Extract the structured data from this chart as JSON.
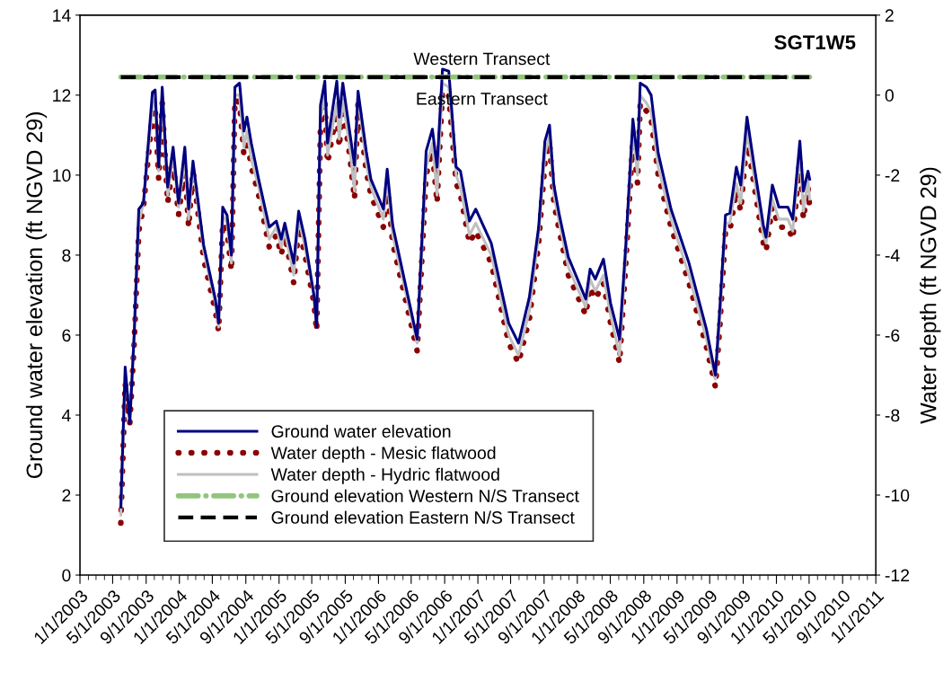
{
  "chart_data": {
    "type": "line",
    "title": "SGT1W5",
    "ylabel": "Ground water elevation (ft NGVD 29)",
    "y2label": "Water depth (ft NGVD 29)",
    "annotations": [
      {
        "text": "Western Transect",
        "x": "2007-01-15",
        "y": 12.45
      },
      {
        "text": "Eastern Transect",
        "x": "2007-01-15",
        "y": 12.45
      }
    ],
    "x": [
      "2003-05-31",
      "2003-06-16",
      "2003-07-03",
      "2003-07-19",
      "2003-08-05",
      "2003-08-22",
      "2003-09-24",
      "2003-10-04",
      "2003-10-17",
      "2003-10-30",
      "2003-11-19",
      "2003-12-09",
      "2003-12-29",
      "2004-01-21",
      "2004-02-04",
      "2004-02-20",
      "2004-03-30",
      "2004-05-12",
      "2004-05-24",
      "2004-06-08",
      "2004-06-24",
      "2004-07-10",
      "2004-07-23",
      "2004-08-09",
      "2004-08-25",
      "2004-09-05",
      "2004-09-21",
      "2004-10-18",
      "2004-11-26",
      "2004-12-22",
      "2005-01-09",
      "2005-01-22",
      "2005-02-24",
      "2005-03-14",
      "2005-04-06",
      "2005-05-09",
      "2005-05-19",
      "2005-06-02",
      "2005-06-18",
      "2005-06-28",
      "2005-08-01",
      "2005-08-10",
      "2005-08-23",
      "2005-09-19",
      "2005-10-05",
      "2005-10-18",
      "2005-11-17",
      "2005-12-04",
      "2006-01-19",
      "2006-02-02",
      "2006-02-22",
      "2006-05-23",
      "2006-06-25",
      "2006-07-18",
      "2006-08-04",
      "2006-08-24",
      "2006-09-16",
      "2006-10-13",
      "2006-10-29",
      "2006-12-01",
      "2006-12-24",
      "2007-02-19",
      "2007-04-24",
      "2007-05-30",
      "2007-07-09",
      "2007-08-12",
      "2007-09-04",
      "2007-09-21",
      "2007-10-07",
      "2007-10-27",
      "2007-11-29",
      "2008-02-01",
      "2008-02-17",
      "2008-03-07",
      "2008-04-06",
      "2008-05-02",
      "2008-06-04",
      "2008-06-27",
      "2008-07-23",
      "2008-08-09",
      "2008-08-19",
      "2008-09-11",
      "2008-09-28",
      "2008-10-24",
      "2008-12-10",
      "2009-02-14",
      "2009-04-19",
      "2009-05-22",
      "2009-06-08",
      "2009-06-28",
      "2009-07-14",
      "2009-08-07",
      "2009-08-23",
      "2009-09-15",
      "2009-10-12",
      "2009-11-14",
      "2009-11-24",
      "2009-12-17",
      "2010-01-10",
      "2010-02-12",
      "2010-03-02",
      "2010-03-28",
      "2010-04-10",
      "2010-04-27",
      "2010-05-03"
    ],
    "series": [
      {
        "name": "Ground water elevation",
        "color": "#000080",
        "line_style": "solid",
        "values": [
          1.7,
          5.2,
          3.8,
          6.0,
          9.15,
          9.3,
          12.07,
          12.13,
          10.2,
          12.2,
          9.7,
          10.7,
          9.3,
          10.7,
          9.15,
          10.35,
          8.25,
          6.9,
          6.3,
          9.2,
          9.0,
          8.0,
          12.2,
          12.3,
          11.1,
          11.45,
          10.8,
          9.9,
          8.7,
          8.85,
          8.4,
          8.8,
          7.8,
          9.1,
          8.4,
          7.0,
          6.2,
          11.75,
          12.35,
          10.8,
          12.35,
          11.45,
          12.3,
          11.0,
          10.25,
          12.1,
          10.6,
          9.9,
          9.15,
          10.15,
          8.75,
          5.9,
          10.6,
          11.15,
          10.2,
          12.65,
          12.6,
          10.2,
          10.1,
          8.85,
          9.15,
          8.3,
          6.3,
          5.8,
          6.95,
          8.7,
          10.85,
          11.25,
          9.75,
          9.0,
          7.95,
          6.9,
          7.65,
          7.4,
          7.9,
          6.8,
          5.9,
          8.25,
          11.4,
          10.4,
          12.3,
          12.2,
          12.0,
          10.55,
          9.15,
          7.8,
          6.15,
          5.0,
          6.75,
          9.0,
          9.05,
          10.2,
          9.75,
          11.45,
          10.2,
          8.75,
          8.45,
          9.75,
          9.2,
          9.2,
          8.9,
          10.85,
          9.6,
          10.1,
          9.9
        ]
      },
      {
        "name": "Water depth - Mesic flatwood",
        "color": "#8b0000",
        "line_style": "dotted",
        "axis": "y2",
        "values": [
          -10.7,
          -7.2,
          -8.2,
          -6.2,
          -3.4,
          -2.8,
          -0.5,
          -0.3,
          -2.1,
          -0.2,
          -2.7,
          -1.7,
          -3.0,
          -1.8,
          -3.3,
          -1.9,
          -4.1,
          -5.4,
          -5.9,
          -3.2,
          -3.4,
          -4.4,
          -0.1,
          -0.2,
          -1.5,
          -1.1,
          -1.8,
          -2.5,
          -3.8,
          -3.5,
          -4.0,
          -3.5,
          -4.7,
          -3.3,
          -4.0,
          -5.2,
          -5.9,
          -0.8,
          -0.1,
          -1.7,
          -0.4,
          -1.3,
          -0.3,
          -1.6,
          -2.6,
          -0.2,
          -1.9,
          -2.5,
          -3.3,
          -2.3,
          -3.7,
          -6.4,
          -2.0,
          -1.4,
          -2.7,
          0.1,
          0.0,
          -2.2,
          -2.5,
          -3.7,
          -3.4,
          -4.2,
          -6.2,
          -6.7,
          -5.6,
          -3.7,
          -1.7,
          -1.2,
          -2.7,
          -3.4,
          -4.5,
          -5.5,
          -4.8,
          -5.1,
          -4.7,
          -5.7,
          -6.7,
          -4.2,
          -1.1,
          -2.2,
          -0.2,
          -0.4,
          -0.6,
          -2.0,
          -3.3,
          -4.7,
          -6.3,
          -7.3,
          -5.7,
          -3.4,
          -3.4,
          -2.4,
          -2.9,
          -1.1,
          -2.3,
          -3.7,
          -3.9,
          -2.8,
          -3.3,
          -3.3,
          -3.6,
          -1.6,
          -3.1,
          -2.3,
          -2.8
        ]
      },
      {
        "name": "Water depth - Hydric flatwood",
        "color": "#c0c0c0",
        "line_style": "solid",
        "axis": "y2",
        "values": [
          -10.5,
          -7.0,
          -8.0,
          -6.0,
          -3.2,
          -2.7,
          -0.3,
          -0.1,
          -1.9,
          0.0,
          -2.5,
          -1.5,
          -2.8,
          -1.6,
          -3.1,
          -1.8,
          -3.9,
          -5.2,
          -5.8,
          -3.0,
          -3.2,
          -4.2,
          0.0,
          0.0,
          -1.3,
          -0.9,
          -1.6,
          -2.3,
          -3.6,
          -3.3,
          -3.8,
          -3.4,
          -4.5,
          -3.1,
          -3.8,
          -5.0,
          -5.8,
          -0.6,
          0.0,
          -1.5,
          -0.2,
          -1.1,
          -0.1,
          -1.4,
          -2.4,
          0.0,
          -1.7,
          -2.3,
          -3.1,
          -2.1,
          -3.5,
          -6.2,
          -1.8,
          -1.2,
          -2.5,
          0.3,
          0.2,
          -2.0,
          -2.3,
          -3.5,
          -3.2,
          -4.0,
          -6.0,
          -6.5,
          -5.4,
          -3.5,
          -1.5,
          -1.0,
          -2.5,
          -3.2,
          -4.3,
          -5.3,
          -4.6,
          -4.9,
          -4.5,
          -5.5,
          -6.5,
          -4.0,
          -0.9,
          -2.0,
          0.0,
          -0.2,
          -0.4,
          -1.8,
          -3.1,
          -4.5,
          -6.1,
          -7.1,
          -5.5,
          -3.2,
          -3.2,
          -2.2,
          -2.7,
          -0.9,
          -2.1,
          -3.5,
          -3.7,
          -2.6,
          -3.1,
          -3.1,
          -3.4,
          -1.4,
          -2.9,
          -2.1,
          -2.6
        ]
      },
      {
        "name": "Ground elevation Western N/S Transect",
        "color": "#93c47d",
        "line_style": "dashdot",
        "x": [
          "2003-05-31",
          "2010-05-03"
        ],
        "values": [
          12.45,
          12.45
        ]
      },
      {
        "name": "Ground elevation Eastern N/S Transect",
        "color": "#000000",
        "line_style": "dashed",
        "x": [
          "2003-05-31",
          "2010-05-03"
        ],
        "values": [
          12.45,
          12.45
        ]
      }
    ],
    "xlim": [
      "2003-01-01",
      "2011-01-01"
    ],
    "xticks": [
      {
        "value": "2003-01-01",
        "label": "1/1/2003"
      },
      {
        "value": "2003-05-01",
        "label": "5/1/2003"
      },
      {
        "value": "2003-09-01",
        "label": "9/1/2003"
      },
      {
        "value": "2004-01-01",
        "label": "1/1/2004"
      },
      {
        "value": "2004-05-01",
        "label": "5/1/2004"
      },
      {
        "value": "2004-09-01",
        "label": "9/1/2004"
      },
      {
        "value": "2005-01-01",
        "label": "1/1/2005"
      },
      {
        "value": "2005-05-01",
        "label": "5/1/2005"
      },
      {
        "value": "2005-09-01",
        "label": "9/1/2005"
      },
      {
        "value": "2006-01-01",
        "label": "1/1/2006"
      },
      {
        "value": "2006-05-01",
        "label": "5/1/2006"
      },
      {
        "value": "2006-09-01",
        "label": "9/1/2006"
      },
      {
        "value": "2007-01-01",
        "label": "1/1/2007"
      },
      {
        "value": "2007-05-01",
        "label": "5/1/2007"
      },
      {
        "value": "2007-09-01",
        "label": "9/1/2007"
      },
      {
        "value": "2008-01-01",
        "label": "1/1/2008"
      },
      {
        "value": "2008-05-01",
        "label": "5/1/2008"
      },
      {
        "value": "2008-09-01",
        "label": "9/1/2008"
      },
      {
        "value": "2009-01-01",
        "label": "1/1/2009"
      },
      {
        "value": "2009-05-01",
        "label": "5/1/2009"
      },
      {
        "value": "2009-09-01",
        "label": "9/1/2009"
      },
      {
        "value": "2010-01-01",
        "label": "1/1/2010"
      },
      {
        "value": "2010-05-01",
        "label": "5/1/2010"
      },
      {
        "value": "2010-09-01",
        "label": "9/1/2010"
      },
      {
        "value": "2011-01-01",
        "label": "1/1/2011"
      }
    ],
    "ylim": [
      0,
      14
    ],
    "yticks": [
      0,
      2,
      4,
      6,
      8,
      10,
      12,
      14
    ],
    "y2lim": [
      -12,
      2
    ],
    "y2ticks": [
      -12,
      -10,
      -8,
      -6,
      -4,
      -2,
      0,
      2
    ],
    "grid": false,
    "legend": "bottom left",
    "marker": "none"
  }
}
